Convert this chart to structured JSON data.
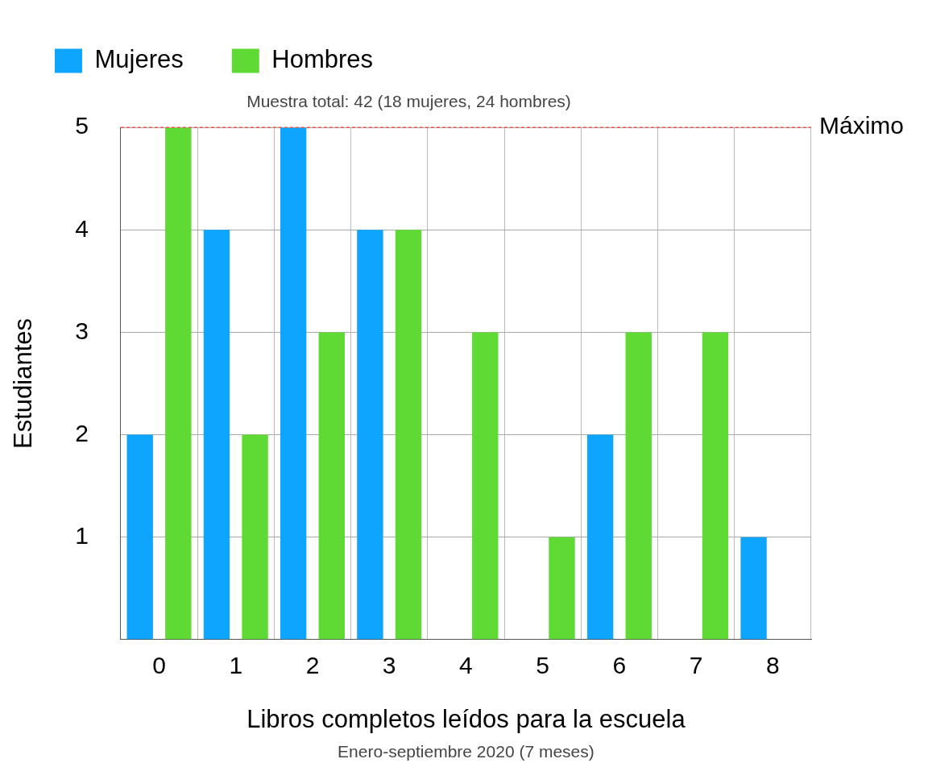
{
  "chart_data": {
    "type": "bar",
    "subtitle": "Muestra total: 42 (18 mujeres, 24 hombres)",
    "xlabel": "Libros completos leídos para la escuela",
    "ylabel": "Estudiantes",
    "categories": [
      "0",
      "1",
      "2",
      "3",
      "4",
      "5",
      "6",
      "7",
      "8"
    ],
    "series": [
      {
        "name": "Mujeres",
        "color": "#0ea5ff",
        "values": [
          2,
          4,
          5,
          4,
          0,
          0,
          2,
          0,
          1
        ]
      },
      {
        "name": "Hombres",
        "color": "#5fd934",
        "values": [
          5,
          2,
          3,
          4,
          3,
          1,
          3,
          3,
          0
        ]
      }
    ],
    "ylim": [
      0,
      5
    ],
    "yticks": [
      {
        "value": 0,
        "label": null
      },
      1,
      2,
      3,
      4,
      5
    ],
    "grid": true,
    "legend": "top",
    "ref_lines": [
      {
        "axis": "y",
        "value": 5,
        "label": "Máximo",
        "color": "#ff3b30",
        "line_style": "dashed"
      }
    ],
    "annotations": [
      "Enero-septiembre 2020 (7 meses)"
    ]
  }
}
